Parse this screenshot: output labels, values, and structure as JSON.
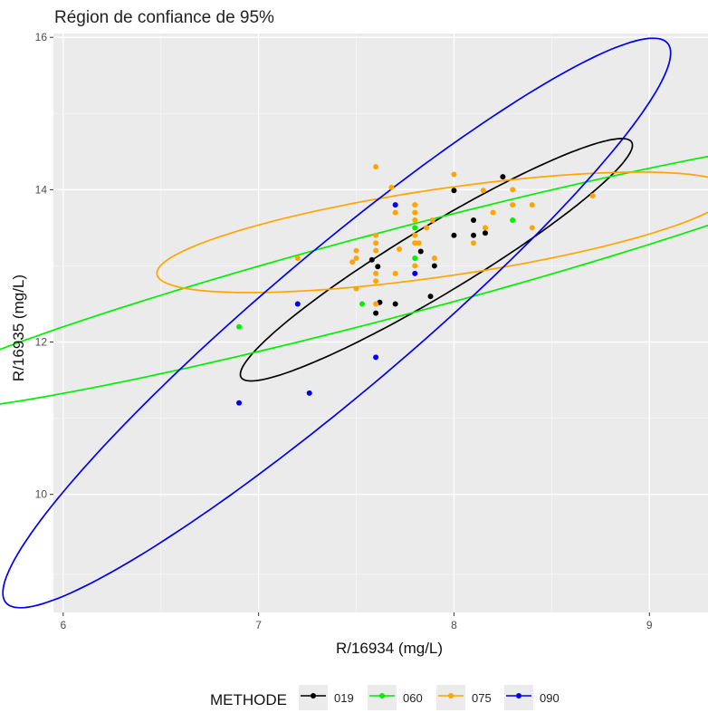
{
  "chart_data": {
    "type": "scatter",
    "title": "Région de confiance de 95%",
    "xlabel": "R/16934 (mg/L)",
    "ylabel": "R/16935 (mg/L)",
    "xlim": [
      5.95,
      9.3
    ],
    "ylim": [
      8.45,
      16.05
    ],
    "x_ticks": [
      6,
      7,
      8,
      9
    ],
    "y_ticks": [
      10,
      12,
      14,
      16
    ],
    "x_tick_labels": [
      "6",
      "7",
      "8",
      "9"
    ],
    "y_tick_labels": [
      "10",
      "12",
      "14",
      "16"
    ],
    "grid": true,
    "legend": {
      "title": "METHODE",
      "position": "bottom"
    },
    "overlay": "95% confidence ellipse per series",
    "series": [
      {
        "name": "019",
        "color": "#000000",
        "points": [
          [
            7.58,
            13.08
          ],
          [
            7.6,
            12.38
          ],
          [
            7.62,
            12.52
          ],
          [
            7.61,
            12.99
          ],
          [
            7.7,
            12.5
          ],
          [
            7.83,
            13.19
          ],
          [
            7.88,
            12.6
          ],
          [
            7.9,
            13.0
          ],
          [
            8.0,
            13.4
          ],
          [
            8.0,
            13.99
          ],
          [
            8.1,
            13.6
          ],
          [
            8.1,
            13.4
          ],
          [
            8.16,
            13.43
          ],
          [
            8.25,
            14.17
          ]
        ]
      },
      {
        "name": "060",
        "color": "#00ee00",
        "points": [
          [
            6.9,
            12.2
          ],
          [
            7.53,
            12.5
          ],
          [
            7.8,
            13.5
          ],
          [
            7.8,
            13.1
          ],
          [
            8.3,
            13.6
          ]
        ]
      },
      {
        "name": "075",
        "color": "#ffa500",
        "points": [
          [
            7.2,
            13.1
          ],
          [
            7.48,
            13.05
          ],
          [
            7.5,
            13.1
          ],
          [
            7.5,
            13.2
          ],
          [
            7.5,
            12.7
          ],
          [
            7.6,
            14.3
          ],
          [
            7.6,
            13.4
          ],
          [
            7.6,
            13.3
          ],
          [
            7.6,
            13.2
          ],
          [
            7.6,
            12.9
          ],
          [
            7.6,
            12.8
          ],
          [
            7.6,
            12.5
          ],
          [
            7.68,
            14.03
          ],
          [
            7.7,
            13.7
          ],
          [
            7.7,
            12.9
          ],
          [
            7.72,
            13.22
          ],
          [
            7.8,
            13.8
          ],
          [
            7.8,
            13.7
          ],
          [
            7.8,
            13.6
          ],
          [
            7.8,
            13.4
          ],
          [
            7.8,
            13.3
          ],
          [
            7.8,
            13.0
          ],
          [
            7.82,
            13.3
          ],
          [
            7.86,
            13.5
          ],
          [
            7.89,
            13.6
          ],
          [
            7.9,
            13.1
          ],
          [
            8.0,
            14.2
          ],
          [
            8.1,
            13.3
          ],
          [
            8.15,
            13.99
          ],
          [
            8.16,
            13.5
          ],
          [
            8.2,
            13.7
          ],
          [
            8.3,
            14.0
          ],
          [
            8.3,
            13.8
          ],
          [
            8.4,
            13.8
          ],
          [
            8.4,
            13.5
          ],
          [
            8.71,
            13.92
          ]
        ]
      },
      {
        "name": "090",
        "color": "#0000ee",
        "points": [
          [
            6.9,
            11.2
          ],
          [
            7.2,
            12.5
          ],
          [
            7.26,
            11.33
          ],
          [
            7.6,
            11.8
          ],
          [
            7.7,
            13.8
          ],
          [
            7.8,
            12.9
          ]
        ]
      }
    ],
    "ellipses": [
      {
        "series": "019",
        "color": "#000000",
        "center": [
          7.91,
          13.08
        ],
        "a": 1.86,
        "b": 0.28,
        "angle_deg": 58.4
      },
      {
        "series": "060",
        "color": "#00ee00",
        "center": [
          7.69,
          12.9
        ],
        "a": 3.1,
        "b": 0.48,
        "angle_deg": 34.9
      },
      {
        "series": "075",
        "color": "#ffa500",
        "center": [
          7.95,
          13.44
        ],
        "a": 1.58,
        "b": 0.54,
        "angle_deg": 22.9
      },
      {
        "series": "090",
        "color": "#0000ee",
        "center": [
          7.4,
          12.25
        ],
        "a": 4.08,
        "b": 0.5,
        "angle_deg": 66.2
      }
    ]
  }
}
